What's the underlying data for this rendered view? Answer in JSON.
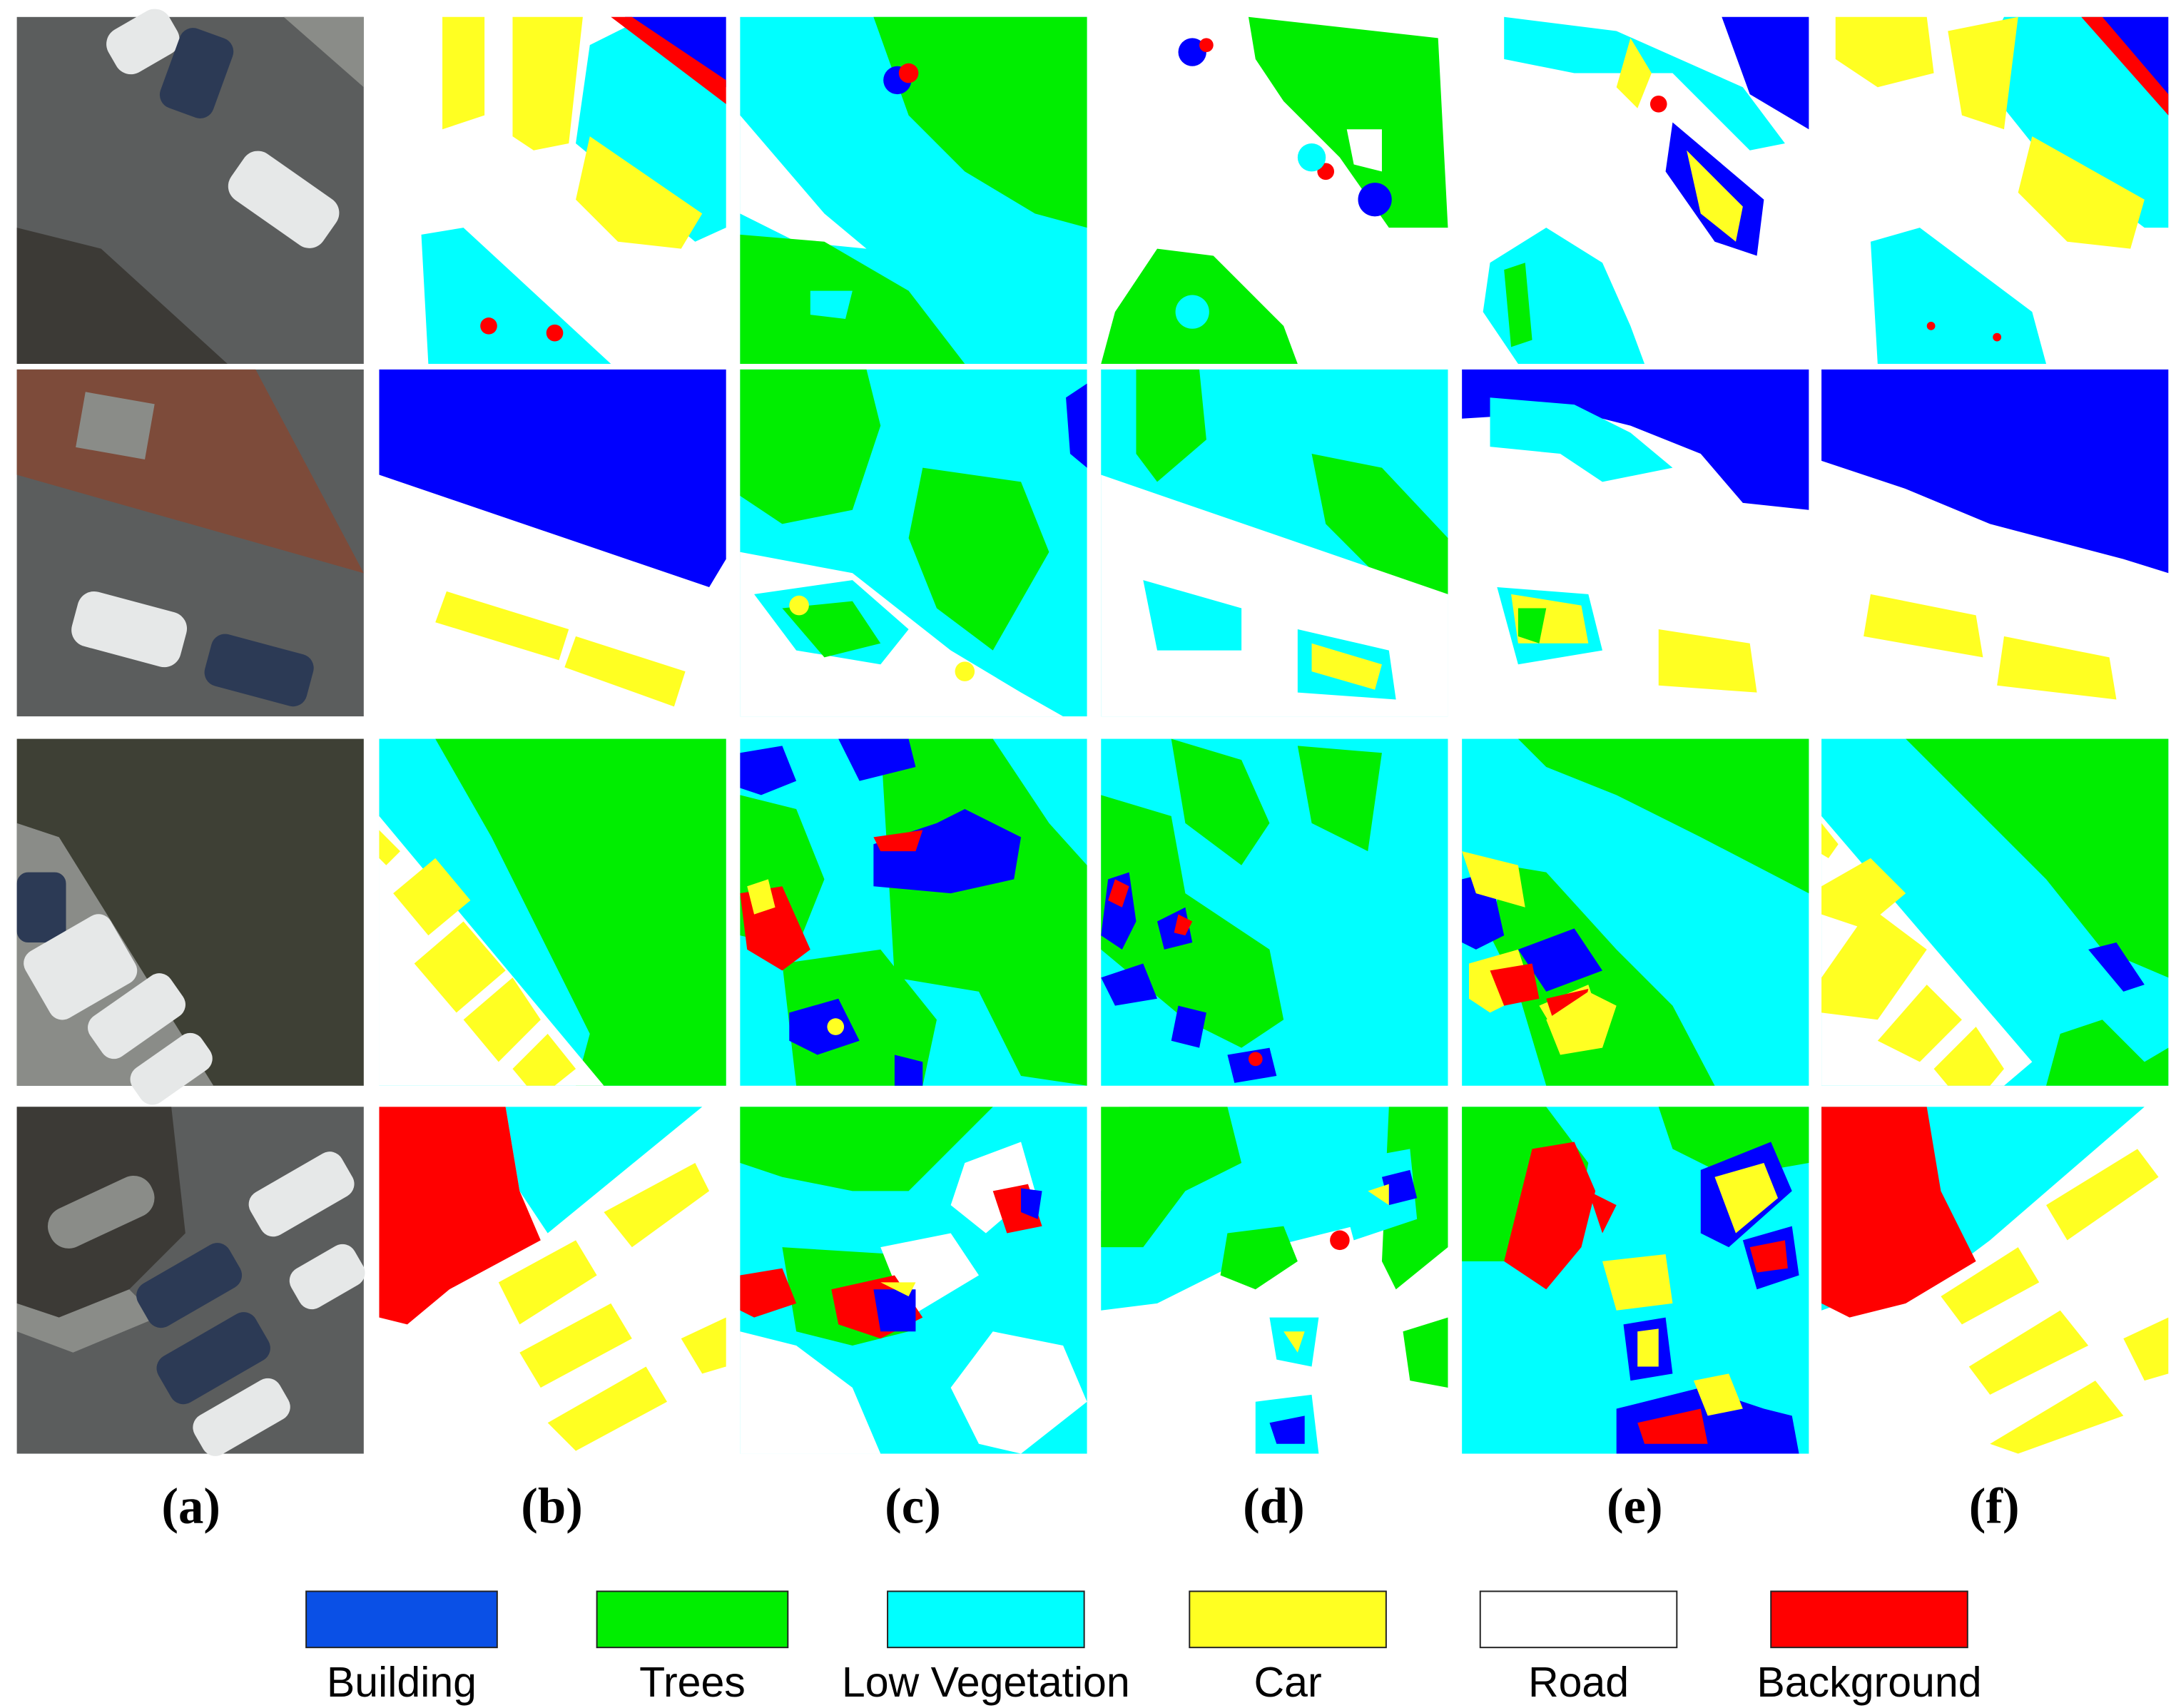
{
  "panel_labels": [
    "(a)",
    "(b)",
    "(c)",
    "(d)",
    "(e)",
    "(f)"
  ],
  "legend": [
    {
      "label": "Building",
      "color": "#0a50e6"
    },
    {
      "label": "Trees",
      "color": "#00ee00"
    },
    {
      "label": "Low Vegetation",
      "color": "#00ffff"
    },
    {
      "label": "Car",
      "color": "#ffff22"
    },
    {
      "label": "Road",
      "color": "#ffffff"
    },
    {
      "label": "Background",
      "color": "#ff0000"
    }
  ]
}
